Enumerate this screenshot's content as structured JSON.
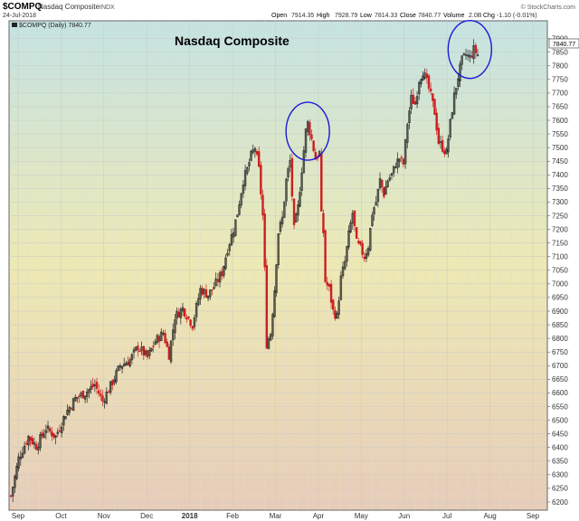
{
  "header": {
    "symbol": "$COMPQ",
    "name": "Nasdaq Composite",
    "exchange": "INDX",
    "date": "24-Jul-2018",
    "open_label": "Open",
    "open": "7914.35",
    "high_label": "High",
    "high": "7928.79",
    "low_label": "Low",
    "low": "7814.33",
    "close_label": "Close",
    "close": "7840.77",
    "volume_label": "Volume",
    "volume": "2.0B",
    "chg_label": "Chg",
    "chg": "-1.10 (-0.01%)",
    "brand": "© StockCharts.com"
  },
  "legend": {
    "label": "$COMPQ (Daily) 7840.77"
  },
  "last_price_badge": "7840.77",
  "chart_data": {
    "type": "candlestick",
    "title": "Nasdaq Composite",
    "xlabel": "",
    "ylabel": "",
    "ylim": [
      6170,
      7965
    ],
    "y_ticks": [
      6200,
      6250,
      6300,
      6350,
      6400,
      6450,
      6500,
      6550,
      6600,
      6650,
      6700,
      6750,
      6800,
      6850,
      6900,
      6950,
      7000,
      7050,
      7100,
      7150,
      7200,
      7250,
      7300,
      7350,
      7400,
      7450,
      7500,
      7550,
      7600,
      7650,
      7700,
      7750,
      7800,
      7850,
      7900
    ],
    "x_ticks": [
      "Sep",
      "Oct",
      "Nov",
      "Dec",
      "2018",
      "Feb",
      "Mar",
      "Apr",
      "May",
      "Jun",
      "Jul",
      "Aug",
      "Sep"
    ],
    "grid": true,
    "background": {
      "top": "#c5e3e2",
      "middle": "#ede9b4",
      "bottom": "#e7cdb9"
    },
    "up_color": "#222222",
    "down_color": "#cc1f1f",
    "annotation_color": "#1a1ad6",
    "price_path": [
      [
        0,
        6222
      ],
      [
        4,
        6360
      ],
      [
        9,
        6440
      ],
      [
        13,
        6405
      ],
      [
        18,
        6470
      ],
      [
        23,
        6440
      ],
      [
        28,
        6525
      ],
      [
        33,
        6580
      ],
      [
        38,
        6600
      ],
      [
        43,
        6630
      ],
      [
        47,
        6570
      ],
      [
        52,
        6640
      ],
      [
        56,
        6700
      ],
      [
        61,
        6720
      ],
      [
        65,
        6770
      ],
      [
        70,
        6730
      ],
      [
        74,
        6790
      ],
      [
        78,
        6820
      ],
      [
        81,
        6740
      ],
      [
        84,
        6880
      ],
      [
        88,
        6910
      ],
      [
        93,
        6850
      ],
      [
        97,
        6980
      ],
      [
        101,
        6960
      ],
      [
        104,
        6990
      ],
      [
        108,
        7040
      ],
      [
        111,
        7130
      ],
      [
        114,
        7200
      ],
      [
        116,
        7260
      ],
      [
        119,
        7380
      ],
      [
        121,
        7420
      ],
      [
        123,
        7470
      ],
      [
        125,
        7500
      ],
      [
        127,
        7420
      ],
      [
        129,
        7250
      ],
      [
        130,
        7050
      ],
      [
        131,
        6780
      ],
      [
        133,
        6820
      ],
      [
        135,
        6980
      ],
      [
        137,
        7190
      ],
      [
        139,
        7240
      ],
      [
        141,
        7380
      ],
      [
        143,
        7450
      ],
      [
        145,
        7200
      ],
      [
        147,
        7280
      ],
      [
        149,
        7420
      ],
      [
        151,
        7560
      ],
      [
        152,
        7590
      ],
      [
        153,
        7560
      ],
      [
        154,
        7530
      ],
      [
        156,
        7460
      ],
      [
        158,
        7480
      ],
      [
        159,
        7250
      ],
      [
        160,
        7190
      ],
      [
        161,
        7010
      ],
      [
        163,
        6980
      ],
      [
        165,
        6900
      ],
      [
        167,
        6880
      ],
      [
        169,
        7020
      ],
      [
        171,
        7080
      ],
      [
        173,
        7180
      ],
      [
        175,
        7260
      ],
      [
        177,
        7150
      ],
      [
        179,
        7130
      ],
      [
        181,
        7100
      ],
      [
        183,
        7140
      ],
      [
        185,
        7260
      ],
      [
        187,
        7300
      ],
      [
        189,
        7380
      ],
      [
        191,
        7330
      ],
      [
        193,
        7380
      ],
      [
        195,
        7400
      ],
      [
        197,
        7440
      ],
      [
        199,
        7460
      ],
      [
        201,
        7440
      ],
      [
        203,
        7590
      ],
      [
        205,
        7680
      ],
      [
        207,
        7660
      ],
      [
        209,
        7750
      ],
      [
        211,
        7780
      ],
      [
        213,
        7740
      ],
      [
        215,
        7690
      ],
      [
        217,
        7630
      ],
      [
        219,
        7520
      ],
      [
        221,
        7500
      ],
      [
        223,
        7480
      ],
      [
        225,
        7590
      ],
      [
        227,
        7690
      ],
      [
        229,
        7760
      ],
      [
        231,
        7820
      ],
      [
        233,
        7840
      ],
      [
        235,
        7830
      ],
      [
        237,
        7860
      ],
      [
        239,
        7840
      ]
    ],
    "circles": [
      {
        "x_index": 152,
        "y_value": 7560
      },
      {
        "x_index": 235,
        "y_value": 7860
      }
    ]
  }
}
